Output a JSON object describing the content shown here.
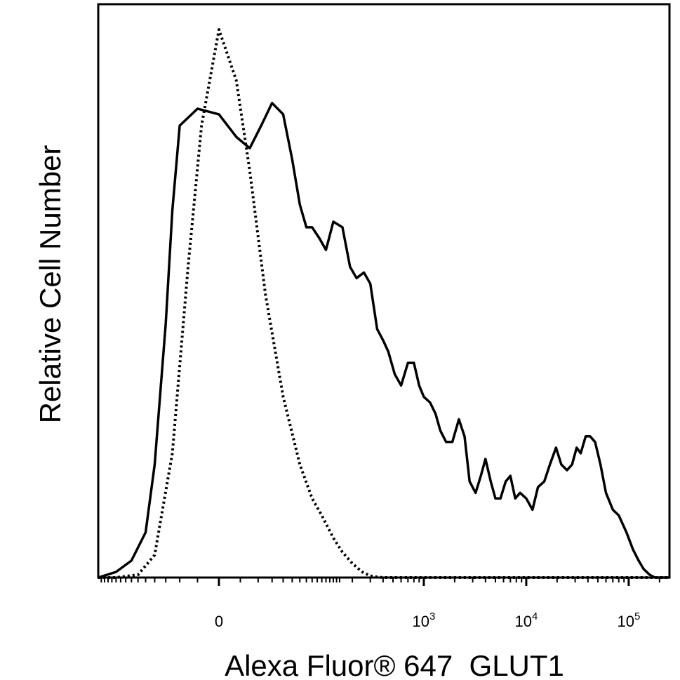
{
  "chart_data": {
    "type": "line",
    "title": "",
    "xlabel": "Alexa Fluor® 647  GLUT1",
    "ylabel": "Relative Cell Number",
    "x_scale": "biexponential (linear near 0, log above ~10^2)",
    "xlim": [
      -150,
      250000
    ],
    "ylim": [
      0,
      100
    ],
    "grid": false,
    "legend": "none",
    "x_tick_labels": [
      {
        "value": 0,
        "base": "0",
        "exp": ""
      },
      {
        "value": 1000,
        "base": "10",
        "exp": "3"
      },
      {
        "value": 10000,
        "base": "10",
        "exp": "4"
      },
      {
        "value": 100000,
        "base": "10",
        "exp": "5"
      }
    ],
    "series": [
      {
        "style": "solid",
        "color": "#000000",
        "x": [
          -150,
          -100,
          -70,
          -50,
          -40,
          -30,
          -25,
          -20,
          -10,
          0,
          8,
          15,
          22,
          30,
          40,
          50,
          60,
          70,
          80,
          95,
          110,
          130,
          160,
          190,
          220,
          260,
          300,
          350,
          400,
          450,
          520,
          600,
          700,
          800,
          900,
          1000,
          1150,
          1300,
          1450,
          1650,
          1900,
          2200,
          2500,
          2800,
          3200,
          3600,
          4000,
          4500,
          5000,
          5600,
          6300,
          7000,
          7800,
          8700,
          10000,
          11500,
          13000,
          15000,
          17000,
          19500,
          22000,
          25000,
          28000,
          31000,
          34000,
          38000,
          42000,
          47000,
          53000,
          60000,
          70000,
          80000,
          95000,
          110000,
          125000,
          140000,
          160000,
          180000,
          200000,
          220000,
          250000
        ],
        "values": [
          0,
          1,
          3,
          8,
          20,
          45,
          65,
          80,
          83,
          82,
          78,
          76,
          80,
          84,
          82,
          74,
          66,
          62,
          62,
          60,
          58,
          63,
          62,
          55,
          53,
          54,
          52,
          44,
          42,
          40,
          36,
          34,
          38,
          38,
          34,
          32,
          31,
          29,
          26,
          24,
          24,
          28,
          25,
          17,
          15,
          18,
          21,
          17,
          14,
          14,
          17,
          18,
          14,
          15,
          14,
          12,
          16,
          17,
          20,
          23,
          20,
          19,
          20,
          23,
          22,
          25,
          25,
          24,
          20,
          15,
          12,
          11,
          8,
          5,
          3,
          1.5,
          0.5,
          0,
          0,
          0,
          0
        ]
      },
      {
        "style": "dotted",
        "color": "#000000",
        "x": [
          -150,
          -100,
          -60,
          -40,
          -25,
          -15,
          -8,
          0,
          8,
          15,
          25,
          40,
          60,
          80,
          100,
          130,
          160,
          200,
          250,
          300,
          350,
          400,
          500,
          700,
          1000,
          10000,
          100000,
          250000
        ],
        "values": [
          0,
          0,
          0.5,
          4,
          22,
          55,
          80,
          97,
          88,
          72,
          50,
          32,
          20,
          14,
          11,
          7,
          4.5,
          2.5,
          1,
          0.3,
          0.1,
          0,
          0,
          0,
          0,
          0,
          0,
          0
        ]
      }
    ]
  }
}
